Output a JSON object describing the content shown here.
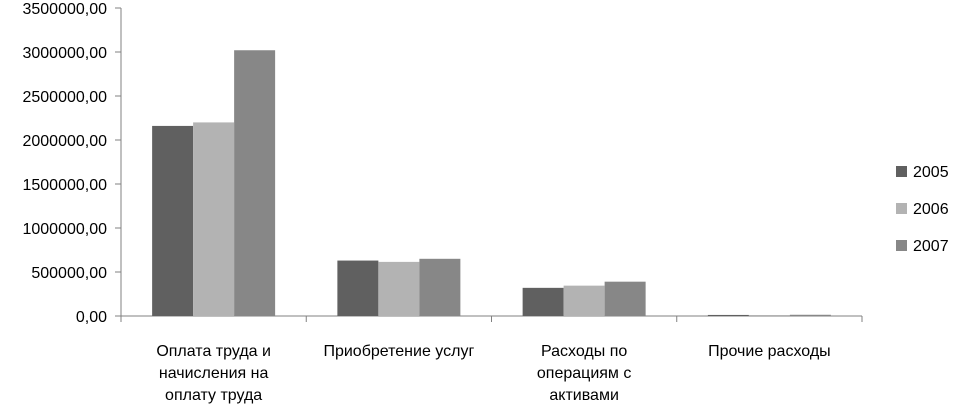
{
  "chart_data": {
    "type": "bar",
    "title": "",
    "xlabel": "",
    "ylabel": "",
    "ylim": [
      0,
      3500000
    ],
    "y_ticks": [
      {
        "value": 0,
        "label": "0,00"
      },
      {
        "value": 500000,
        "label": "500000,00"
      },
      {
        "value": 1000000,
        "label": "1000000,00"
      },
      {
        "value": 1500000,
        "label": "1500000,00"
      },
      {
        "value": 2000000,
        "label": "2000000,00"
      },
      {
        "value": 2500000,
        "label": "2500000,00"
      },
      {
        "value": 3000000,
        "label": "3000000,00"
      },
      {
        "value": 3500000,
        "label": "3500000,00"
      }
    ],
    "categories": [
      [
        "Оплата труда и",
        "начисления на",
        "оплату труда"
      ],
      [
        "Приобретение услуг"
      ],
      [
        "Расходы по",
        "операциям с",
        "активами"
      ],
      [
        "Прочие расходы"
      ]
    ],
    "series": [
      {
        "name": "2005",
        "color": "#606060",
        "values": [
          2160000,
          630000,
          320000,
          12000
        ]
      },
      {
        "name": "2006",
        "color": "#b3b3b3",
        "values": [
          2200000,
          615000,
          345000,
          10000
        ]
      },
      {
        "name": "2007",
        "color": "#878787",
        "values": [
          3020000,
          650000,
          390000,
          14000
        ]
      }
    ],
    "grid": false,
    "legend_position": "right"
  }
}
